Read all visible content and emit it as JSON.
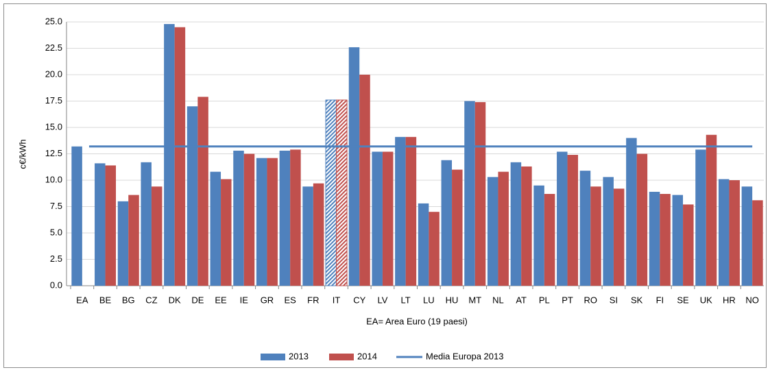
{
  "chart_data": {
    "type": "bar",
    "categories": [
      "EA",
      "BE",
      "BG",
      "CZ",
      "DK",
      "DE",
      "EE",
      "IE",
      "GR",
      "ES",
      "FR",
      "IT",
      "CY",
      "LV",
      "LT",
      "LU",
      "HU",
      "MT",
      "NL",
      "AT",
      "PL",
      "PT",
      "RO",
      "SI",
      "SK",
      "FI",
      "SE",
      "UK",
      "HR",
      "NO"
    ],
    "series": [
      {
        "name": "2013",
        "color": "#4f81bd",
        "values": [
          13.2,
          11.6,
          8.0,
          11.7,
          24.8,
          17.0,
          10.8,
          12.8,
          12.1,
          12.8,
          9.4,
          17.6,
          22.6,
          12.7,
          14.1,
          7.8,
          11.9,
          17.5,
          10.3,
          11.7,
          9.5,
          12.7,
          10.9,
          10.3,
          14.0,
          8.9,
          8.6,
          12.9,
          10.1,
          9.4
        ]
      },
      {
        "name": "2014",
        "color": "#c0504d",
        "values": [
          null,
          11.4,
          8.6,
          9.4,
          24.5,
          17.9,
          10.1,
          12.5,
          12.1,
          12.9,
          9.7,
          17.6,
          20.0,
          12.7,
          14.1,
          7.0,
          11.0,
          17.4,
          10.8,
          11.3,
          8.7,
          12.4,
          9.4,
          9.2,
          12.5,
          8.7,
          7.7,
          14.3,
          10.0,
          8.1
        ]
      }
    ],
    "reference": {
      "name": "Media Europa 2013",
      "color": "#4f81bd",
      "value": 13.2
    },
    "highlight": "IT",
    "y_label": "c€/kWh",
    "x_note": "EA= Area Euro (19 paesi)",
    "ylim": [
      0,
      25
    ],
    "yticks": [
      {
        "value": 0,
        "label": "0.0"
      },
      2.5,
      {
        "value": 5,
        "label": "5.0"
      },
      7.5,
      {
        "value": 10,
        "label": "10.0"
      },
      12.5,
      {
        "value": 15,
        "label": "15.0"
      },
      17.5,
      {
        "value": 20,
        "label": "20.0"
      },
      22.5,
      {
        "value": 25,
        "label": "25.0"
      }
    ],
    "grid": true
  }
}
